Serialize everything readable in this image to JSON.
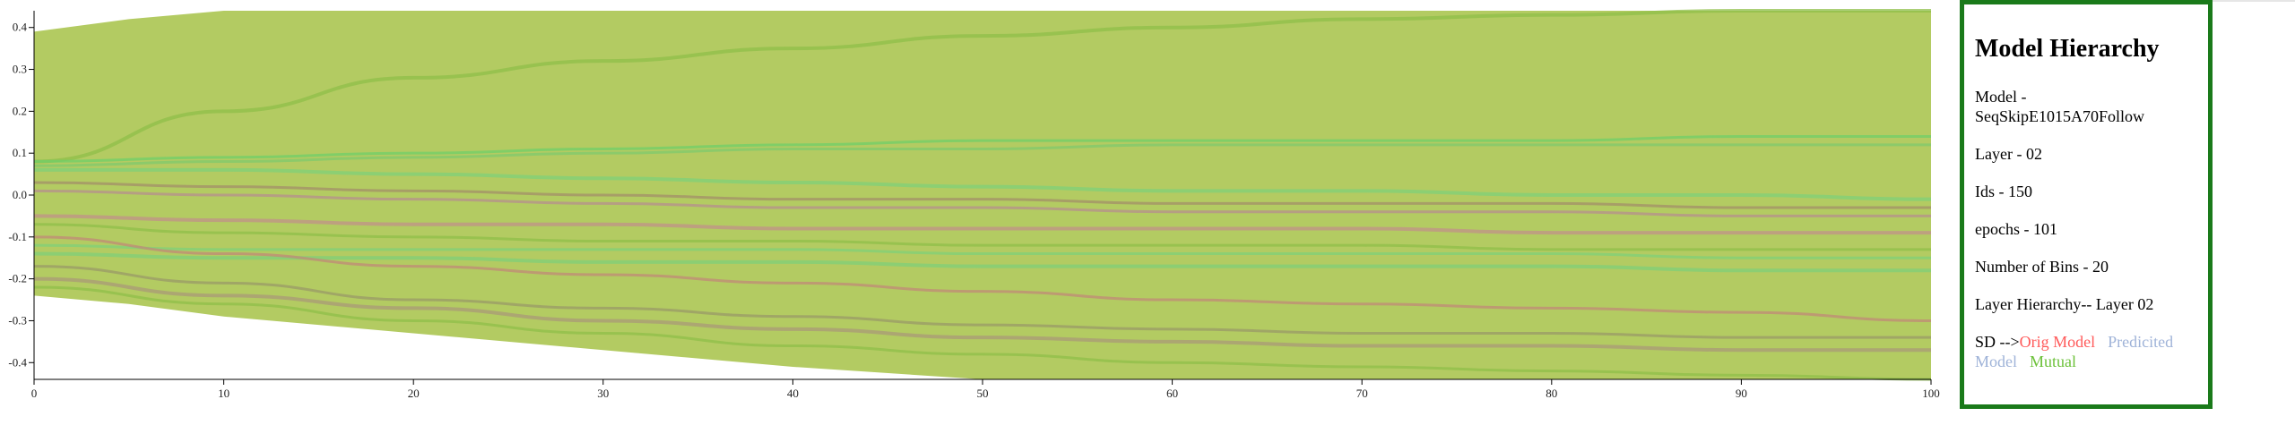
{
  "chart_data": {
    "type": "area",
    "x_ticks": [
      0,
      10,
      20,
      30,
      40,
      50,
      60,
      70,
      80,
      90,
      100
    ],
    "y_ticks": [
      -0.4,
      -0.3,
      -0.2,
      -0.1,
      0.0,
      0.1,
      0.2,
      0.3,
      0.4
    ],
    "y_tick_labels": [
      "-0.4",
      "-0.3",
      "-0.2",
      "-0.1",
      "0.0",
      "0.1",
      "0.2",
      "0.3",
      "0.4"
    ],
    "xlim": [
      0,
      100
    ],
    "ylim": [
      -0.44,
      0.44
    ],
    "band": {
      "x": [
        0,
        5,
        10,
        15,
        20,
        30,
        40,
        50,
        60,
        70,
        80,
        90,
        100
      ],
      "upper": [
        0.39,
        0.42,
        0.44,
        0.44,
        0.44,
        0.44,
        0.44,
        0.44,
        0.44,
        0.44,
        0.44,
        0.44,
        0.44
      ],
      "lower": [
        -0.24,
        -0.26,
        -0.29,
        -0.31,
        -0.33,
        -0.37,
        -0.41,
        -0.44,
        -0.44,
        -0.44,
        -0.44,
        -0.44,
        -0.44
      ]
    },
    "series": [
      {
        "x": [
          0,
          10,
          20,
          30,
          40,
          50,
          60,
          70,
          80,
          90,
          100
        ],
        "y": [
          0.08,
          0.2,
          0.28,
          0.32,
          0.35,
          0.38,
          0.4,
          0.42,
          0.43,
          0.44,
          0.44
        ],
        "color": "#8fbf4a"
      },
      {
        "x": [
          0,
          10,
          20,
          30,
          40,
          50,
          60,
          70,
          80,
          90,
          100
        ],
        "y": [
          0.08,
          0.09,
          0.1,
          0.11,
          0.12,
          0.13,
          0.13,
          0.13,
          0.13,
          0.14,
          0.14
        ],
        "color": "#6fcf6a"
      },
      {
        "x": [
          0,
          10,
          20,
          30,
          40,
          50,
          60,
          70,
          80,
          90,
          100
        ],
        "y": [
          0.07,
          0.08,
          0.09,
          0.1,
          0.11,
          0.11,
          0.12,
          0.12,
          0.12,
          0.12,
          0.12
        ],
        "color": "#7fc96e"
      },
      {
        "x": [
          0,
          10,
          20,
          30,
          40,
          50,
          60,
          70,
          80,
          90,
          100
        ],
        "y": [
          0.06,
          0.06,
          0.05,
          0.04,
          0.03,
          0.02,
          0.01,
          0.01,
          0.0,
          -0.0,
          -0.01
        ],
        "color": "#7fd07a"
      },
      {
        "x": [
          0,
          10,
          20,
          30,
          40,
          50,
          60,
          70,
          80,
          90,
          100
        ],
        "y": [
          0.03,
          0.02,
          0.01,
          0.0,
          -0.01,
          -0.01,
          -0.02,
          -0.02,
          -0.02,
          -0.03,
          -0.03
        ],
        "color": "#a38f6a"
      },
      {
        "x": [
          0,
          10,
          20,
          30,
          40,
          50,
          60,
          70,
          80,
          90,
          100
        ],
        "y": [
          0.01,
          0.0,
          -0.01,
          -0.02,
          -0.03,
          -0.03,
          -0.04,
          -0.04,
          -0.04,
          -0.05,
          -0.05
        ],
        "color": "#b58f8f"
      },
      {
        "x": [
          0,
          10,
          20,
          30,
          40,
          50,
          60,
          70,
          80,
          90,
          100
        ],
        "y": [
          -0.05,
          -0.06,
          -0.07,
          -0.07,
          -0.08,
          -0.08,
          -0.08,
          -0.08,
          -0.09,
          -0.09,
          -0.09
        ],
        "color": "#c0918a"
      },
      {
        "x": [
          0,
          10,
          20,
          30,
          40,
          50,
          60,
          70,
          80,
          90,
          100
        ],
        "y": [
          -0.07,
          -0.09,
          -0.1,
          -0.11,
          -0.11,
          -0.12,
          -0.12,
          -0.12,
          -0.13,
          -0.13,
          -0.13
        ],
        "color": "#8fbf4a"
      },
      {
        "x": [
          0,
          10,
          20,
          30,
          40,
          50,
          60,
          70,
          80,
          90,
          100
        ],
        "y": [
          -0.12,
          -0.13,
          -0.13,
          -0.13,
          -0.13,
          -0.14,
          -0.14,
          -0.14,
          -0.14,
          -0.15,
          -0.15
        ],
        "color": "#7fd07a"
      },
      {
        "x": [
          0,
          10,
          20,
          30,
          40,
          50,
          60,
          70,
          80,
          90,
          100
        ],
        "y": [
          -0.14,
          -0.15,
          -0.15,
          -0.16,
          -0.16,
          -0.17,
          -0.17,
          -0.17,
          -0.17,
          -0.18,
          -0.18
        ],
        "color": "#7fcf7a"
      },
      {
        "x": [
          0,
          10,
          20,
          30,
          40,
          50,
          60,
          70,
          80,
          90,
          100
        ],
        "y": [
          -0.1,
          -0.14,
          -0.17,
          -0.19,
          -0.21,
          -0.23,
          -0.25,
          -0.26,
          -0.27,
          -0.28,
          -0.3
        ],
        "color": "#c08a78"
      },
      {
        "x": [
          0,
          10,
          20,
          30,
          40,
          50,
          60,
          70,
          80,
          90,
          100
        ],
        "y": [
          -0.17,
          -0.21,
          -0.25,
          -0.27,
          -0.29,
          -0.31,
          -0.32,
          -0.33,
          -0.33,
          -0.34,
          -0.34
        ],
        "color": "#9a9a68"
      },
      {
        "x": [
          0,
          10,
          20,
          30,
          40,
          50,
          60,
          70,
          80,
          90,
          100
        ],
        "y": [
          -0.2,
          -0.24,
          -0.27,
          -0.3,
          -0.32,
          -0.34,
          -0.35,
          -0.36,
          -0.36,
          -0.37,
          -0.37
        ],
        "color": "#a99a78"
      },
      {
        "x": [
          0,
          10,
          20,
          30,
          40,
          50,
          60,
          70,
          80,
          90,
          100
        ],
        "y": [
          -0.22,
          -0.26,
          -0.3,
          -0.33,
          -0.36,
          -0.38,
          -0.4,
          -0.41,
          -0.42,
          -0.43,
          -0.44
        ],
        "color": "#8fbf4a"
      }
    ],
    "band_color": "#b3cb62"
  },
  "panel": {
    "title": "Model Hierarchy",
    "model": "Model - SeqSkipE1015A70Follow",
    "layer": "Layer - 02",
    "ids": "Ids - 150",
    "epochs": "epochs - 101",
    "bins": "Number of Bins - 20",
    "hierarchy": "Layer Hierarchy-- Layer 02",
    "sd_prefix": "SD -->",
    "legend": [
      {
        "label": "Orig Model",
        "color": "#ff5a5a"
      },
      {
        "label": "Predicited Model",
        "color": "#9fb3d8"
      },
      {
        "label": "Mutual",
        "color": "#6cc13a"
      }
    ]
  }
}
